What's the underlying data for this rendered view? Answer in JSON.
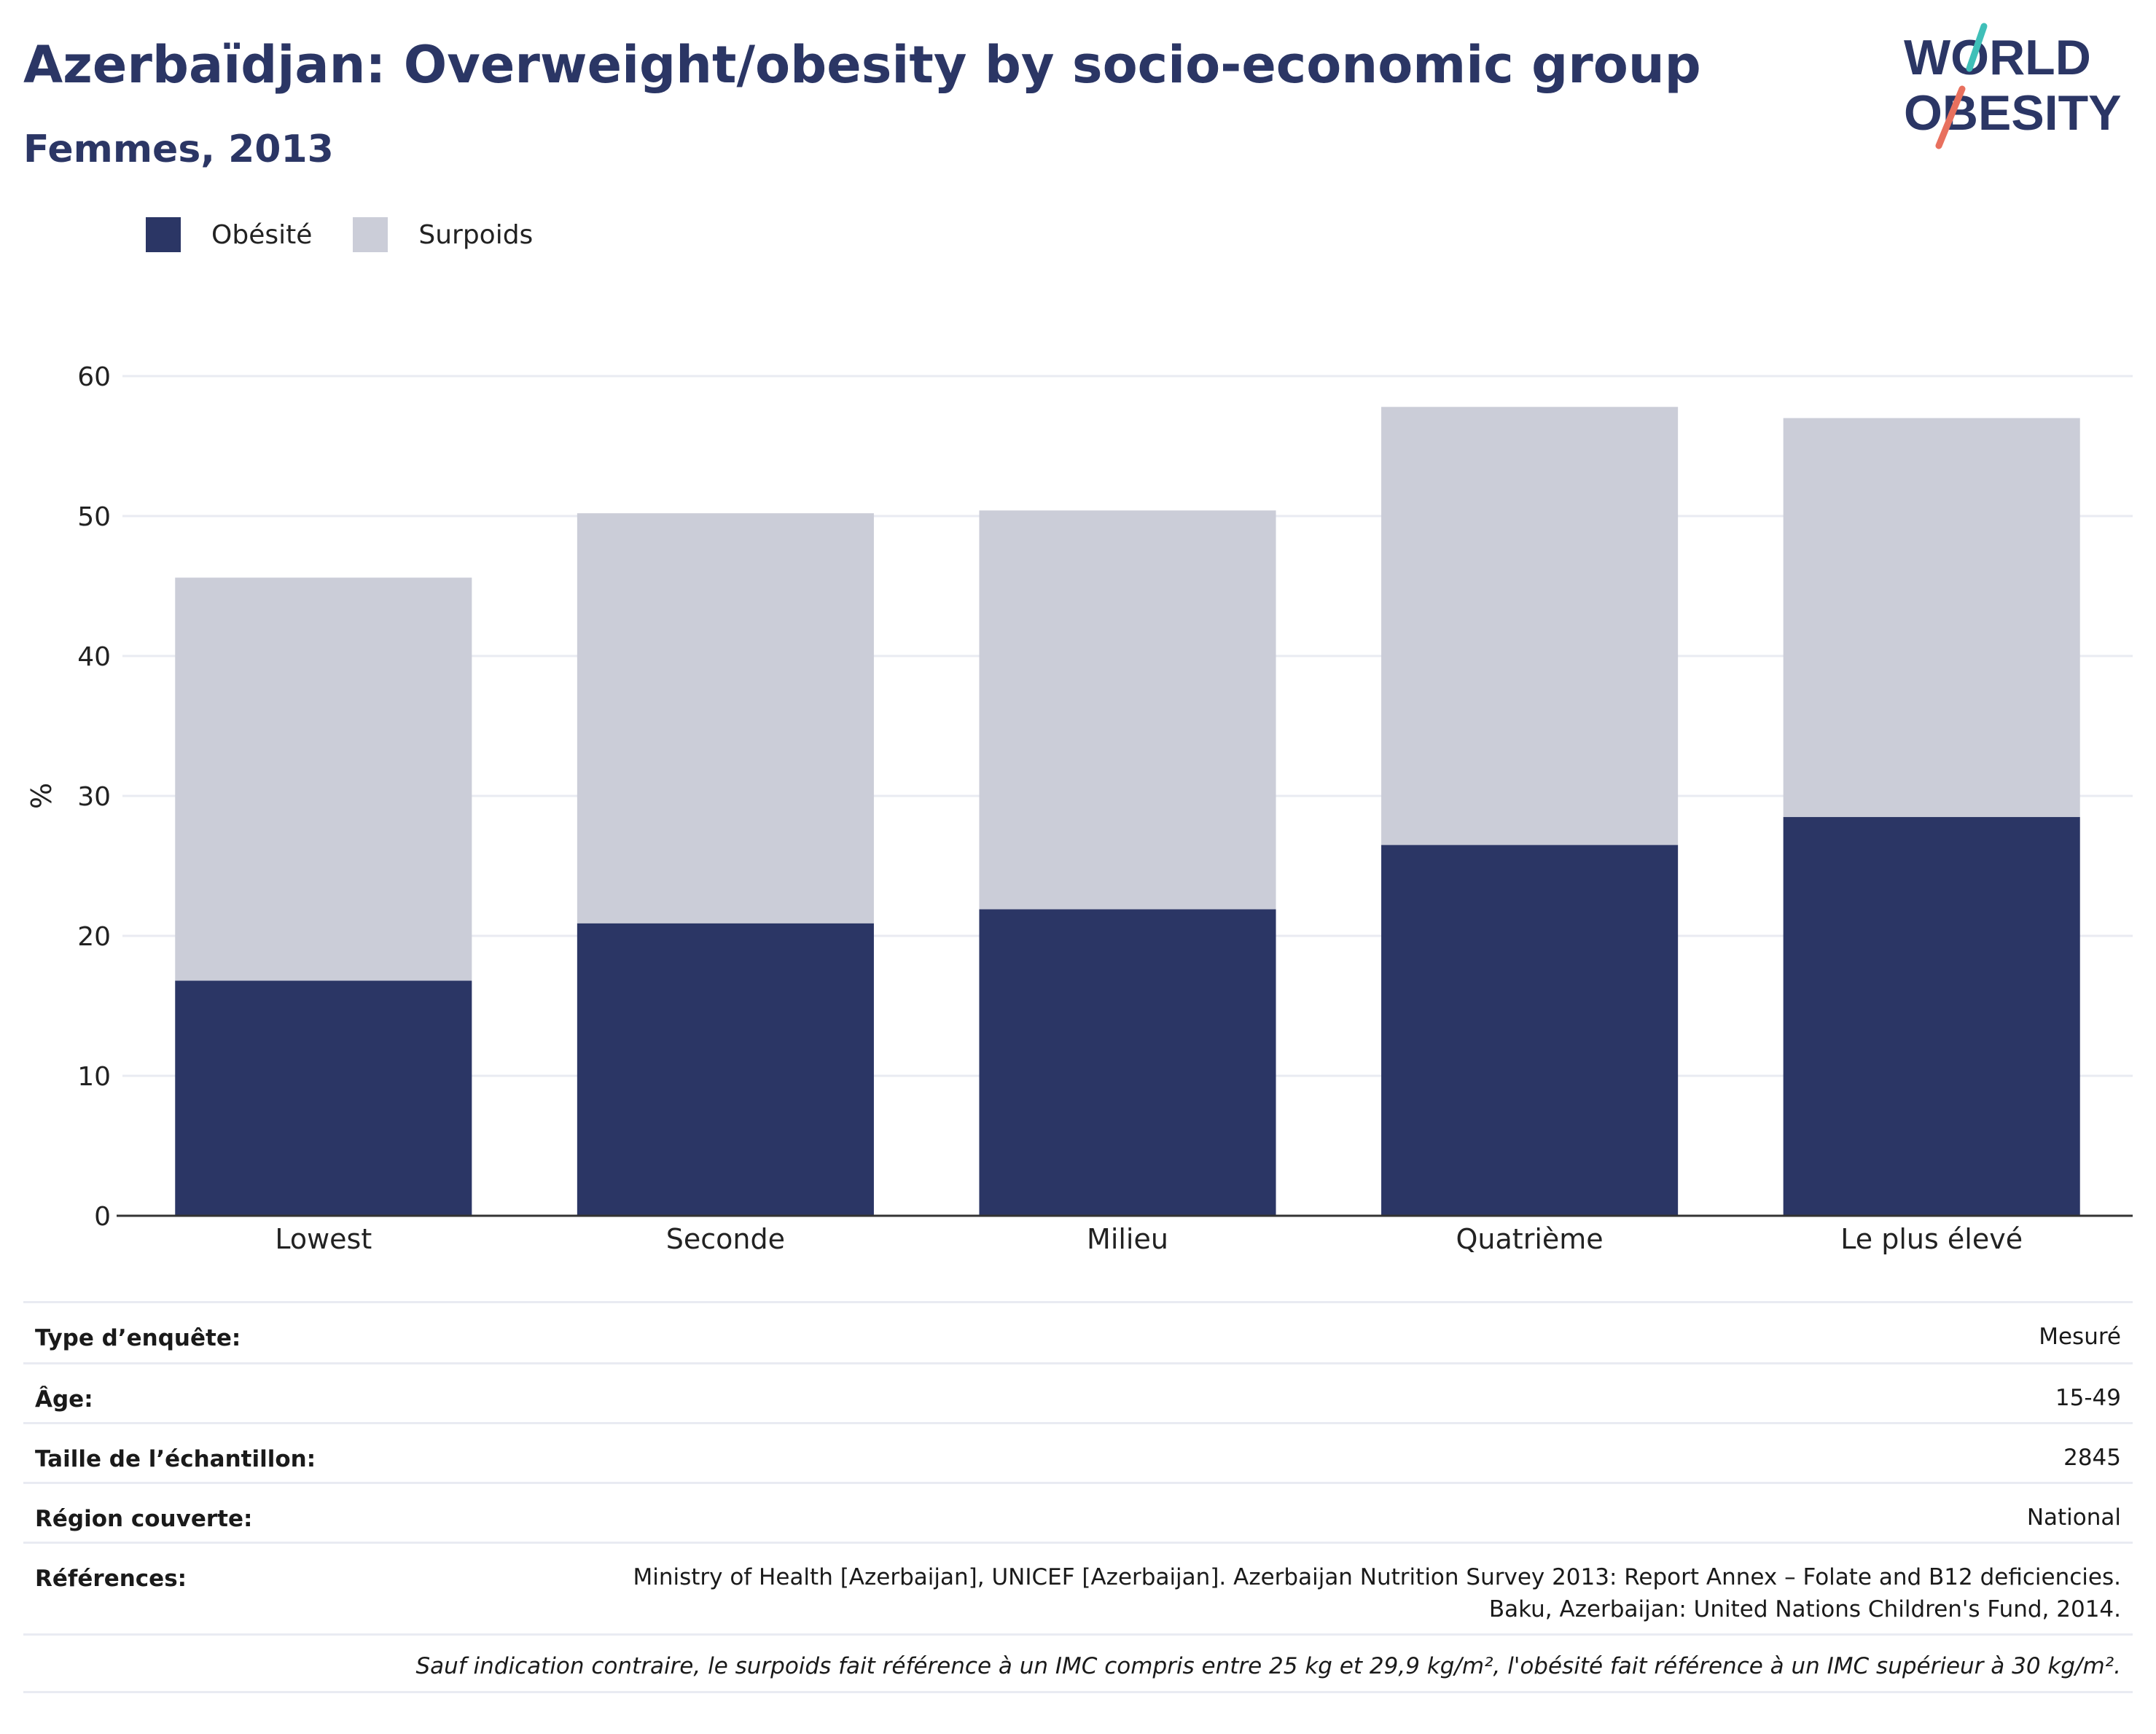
{
  "header": {
    "title": "Azerbaïdjan: Overweight/obesity by socio-economic group",
    "subtitle": "Femmes, 2013"
  },
  "logo": {
    "line1": "WORLD",
    "line2": "OBESITY"
  },
  "colors": {
    "obesity": "#2b3665",
    "overweight": "#cbcdd8",
    "title": "#2b3665",
    "grid": "#e9ebf2",
    "axis": "#333333"
  },
  "chart_data": {
    "type": "bar",
    "stacked": true,
    "categories": [
      "Lowest",
      "Seconde",
      "Milieu",
      "Quatrième",
      "Le plus élevé"
    ],
    "series": [
      {
        "name": "Obésité",
        "values": [
          16.8,
          20.9,
          21.9,
          26.5,
          28.5
        ]
      },
      {
        "name": "Surpoids",
        "values": [
          28.8,
          29.3,
          28.5,
          31.3,
          28.5
        ]
      }
    ],
    "ylabel": "%",
    "ylim": [
      0,
      60
    ],
    "yticks": [
      0,
      10,
      20,
      30,
      40,
      50,
      60
    ],
    "grid": true,
    "legend_position": "top-left"
  },
  "info": {
    "rows": [
      {
        "label": "Type d’enquête:",
        "value": "Mesuré"
      },
      {
        "label": "Âge:",
        "value": "15-49"
      },
      {
        "label": "Taille de l’échantillon:",
        "value": "2845"
      },
      {
        "label": "Région couverte:",
        "value": "National"
      }
    ],
    "references_label": "Références:",
    "references_line1": "Ministry of Health [Azerbaijan], UNICEF [Azerbaijan]. Azerbaijan Nutrition Survey 2013: Report Annex – Folate and B12 deficiencies.",
    "references_line2": "Baku, Azerbaijan: United Nations Children's Fund, 2014.",
    "footnote": "Sauf indication contraire, le surpoids fait référence à un IMC compris entre 25 kg et 29,9 kg/m², l'obésité fait référence à un IMC supérieur à 30 kg/m²."
  }
}
